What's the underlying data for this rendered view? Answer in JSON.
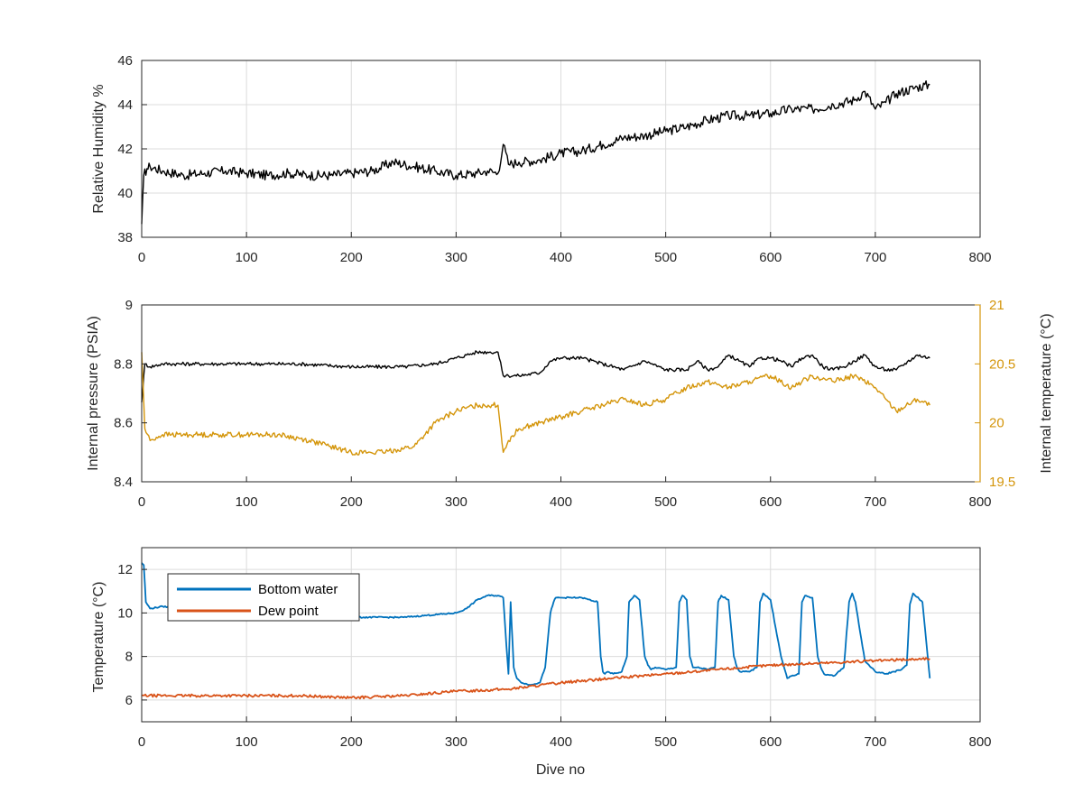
{
  "colors": {
    "background": "#ffffff",
    "axis": "#262626",
    "grid": "#dcdcdc",
    "humidity": "#000000",
    "pressure": "#000000",
    "internal_temperature": "#D4950A",
    "bottom_water": "#0072BD",
    "dew_point": "#D95319"
  },
  "chart_data": [
    {
      "type": "line",
      "xlabel": "",
      "ylabel": "Relative Humidity %",
      "xlim": [
        0,
        800
      ],
      "ylim": [
        38,
        46
      ],
      "xticks": [
        "0",
        "100",
        "200",
        "300",
        "400",
        "500",
        "600",
        "700",
        "800"
      ],
      "yticks": [
        "38",
        "40",
        "42",
        "44",
        "46"
      ],
      "grid": true,
      "series": [
        {
          "color": "#000000",
          "x": [
            0,
            2,
            5,
            8,
            20,
            40,
            60,
            80,
            100,
            120,
            140,
            160,
            180,
            200,
            220,
            240,
            260,
            280,
            300,
            320,
            330,
            340,
            345,
            350,
            360,
            380,
            400,
            420,
            440,
            460,
            480,
            500,
            520,
            540,
            560,
            580,
            600,
            620,
            640,
            660,
            680,
            690,
            700,
            710,
            720,
            740,
            752
          ],
          "y": [
            38.6,
            40.8,
            41.1,
            41.2,
            41.0,
            40.8,
            40.9,
            41.0,
            40.9,
            40.8,
            40.9,
            40.8,
            40.8,
            40.9,
            41.0,
            41.4,
            41.2,
            41.0,
            40.8,
            40.9,
            41.0,
            40.9,
            42.2,
            41.3,
            41.4,
            41.5,
            41.8,
            41.9,
            42.2,
            42.5,
            42.6,
            42.8,
            43.0,
            43.3,
            43.5,
            43.5,
            43.6,
            43.8,
            43.8,
            44.0,
            44.2,
            44.6,
            43.8,
            44.1,
            44.5,
            44.8,
            44.9
          ]
        }
      ]
    },
    {
      "type": "line",
      "xlabel": "",
      "ylabel": "Internal pressure (PSIA)",
      "ylabel_right": "Internal temperature (°C)",
      "xlim": [
        0,
        800
      ],
      "ylim": [
        8.4,
        9
      ],
      "ylim_right": [
        19.5,
        21
      ],
      "xticks": [
        "0",
        "100",
        "200",
        "300",
        "400",
        "500",
        "600",
        "700",
        "800"
      ],
      "yticks": [
        "8.4",
        "8.6",
        "8.8",
        "9"
      ],
      "yticks_right": [
        "19.5",
        "20",
        "20.5",
        "21"
      ],
      "grid": false,
      "series": [
        {
          "axis": "left",
          "color": "#000000",
          "x": [
            0,
            3,
            8,
            20,
            60,
            100,
            150,
            200,
            250,
            280,
            300,
            310,
            320,
            330,
            340,
            345,
            350,
            360,
            380,
            390,
            400,
            420,
            440,
            460,
            480,
            500,
            520,
            530,
            540,
            550,
            560,
            570,
            580,
            590,
            600,
            610,
            620,
            630,
            640,
            650,
            660,
            670,
            680,
            690,
            700,
            710,
            720,
            740,
            752
          ],
          "y": [
            8.67,
            8.8,
            8.79,
            8.8,
            8.8,
            8.8,
            8.8,
            8.79,
            8.79,
            8.8,
            8.82,
            8.83,
            8.84,
            8.84,
            8.84,
            8.76,
            8.76,
            8.76,
            8.77,
            8.81,
            8.82,
            8.82,
            8.8,
            8.78,
            8.81,
            8.78,
            8.78,
            8.81,
            8.78,
            8.79,
            8.83,
            8.81,
            8.79,
            8.82,
            8.82,
            8.81,
            8.79,
            8.82,
            8.83,
            8.79,
            8.78,
            8.79,
            8.81,
            8.83,
            8.79,
            8.78,
            8.78,
            8.83,
            8.82
          ]
        },
        {
          "axis": "right",
          "color": "#D4950A",
          "x": [
            0,
            3,
            8,
            20,
            50,
            80,
            100,
            130,
            160,
            180,
            200,
            230,
            260,
            280,
            300,
            320,
            340,
            345,
            350,
            360,
            380,
            400,
            420,
            440,
            460,
            480,
            500,
            520,
            540,
            560,
            580,
            600,
            620,
            640,
            660,
            680,
            700,
            710,
            720,
            740,
            752
          ],
          "y": [
            20.6,
            19.95,
            19.85,
            19.9,
            19.9,
            19.9,
            19.9,
            19.9,
            19.85,
            19.8,
            19.75,
            19.75,
            19.8,
            20.0,
            20.1,
            20.15,
            20.15,
            19.75,
            19.85,
            19.95,
            20.0,
            20.05,
            20.1,
            20.15,
            20.2,
            20.15,
            20.2,
            20.3,
            20.35,
            20.3,
            20.35,
            20.4,
            20.3,
            20.4,
            20.35,
            20.4,
            20.3,
            20.2,
            20.1,
            20.2,
            20.15
          ]
        }
      ]
    },
    {
      "type": "line",
      "xlabel": "Dive no",
      "ylabel": "Temperature (°C)",
      "xlim": [
        0,
        800
      ],
      "ylim": [
        5,
        13
      ],
      "xticks": [
        "0",
        "100",
        "200",
        "300",
        "400",
        "500",
        "600",
        "700",
        "800"
      ],
      "yticks": [
        "6",
        "8",
        "10",
        "12"
      ],
      "grid": true,
      "legend_position": "top-left",
      "series": [
        {
          "name": "Bottom water",
          "color": "#0072BD",
          "x": [
            0,
            2,
            4,
            8,
            20,
            40,
            60,
            100,
            150,
            200,
            250,
            300,
            310,
            320,
            330,
            340,
            345,
            348,
            350,
            352,
            355,
            358,
            362,
            370,
            380,
            385,
            390,
            393,
            395,
            400,
            420,
            435,
            438,
            440,
            442,
            445,
            450,
            458,
            463,
            465,
            470,
            475,
            480,
            483,
            486,
            490,
            500,
            510,
            513,
            516,
            520,
            523,
            526,
            530,
            540,
            547,
            550,
            553,
            560,
            565,
            568,
            571,
            580,
            587,
            590,
            593,
            600,
            610,
            613,
            616,
            620,
            627,
            630,
            633,
            640,
            645,
            648,
            651,
            660,
            670,
            675,
            678,
            681,
            690,
            700,
            710,
            725,
            730,
            733,
            736,
            745,
            750,
            752
          ],
          "y": [
            12.3,
            12.2,
            10.5,
            10.2,
            10.3,
            10.2,
            10.1,
            10.0,
            9.9,
            9.8,
            9.8,
            10.0,
            10.2,
            10.6,
            10.8,
            10.8,
            10.7,
            8.5,
            7.2,
            10.5,
            7.5,
            7.0,
            6.8,
            6.7,
            6.8,
            7.5,
            10.0,
            10.5,
            10.7,
            10.7,
            10.7,
            10.5,
            8.0,
            7.3,
            7.2,
            7.3,
            7.2,
            7.3,
            8.0,
            10.5,
            10.8,
            10.6,
            8.0,
            7.6,
            7.4,
            7.5,
            7.4,
            7.5,
            10.5,
            10.8,
            10.6,
            8.0,
            7.5,
            7.5,
            7.4,
            7.5,
            10.5,
            10.8,
            10.6,
            8.0,
            7.5,
            7.3,
            7.3,
            7.5,
            10.5,
            10.9,
            10.6,
            8.0,
            7.5,
            7.0,
            7.1,
            7.2,
            10.5,
            10.8,
            10.7,
            8.0,
            7.5,
            7.2,
            7.1,
            7.5,
            10.5,
            10.9,
            10.5,
            7.8,
            7.3,
            7.2,
            7.4,
            7.6,
            10.4,
            10.9,
            10.5,
            8.0,
            7.0
          ]
        },
        {
          "name": "Dew point",
          "color": "#D95319",
          "x": [
            0,
            20,
            50,
            100,
            150,
            200,
            250,
            300,
            350,
            400,
            450,
            500,
            550,
            600,
            650,
            700,
            752
          ],
          "y": [
            6.2,
            6.2,
            6.2,
            6.2,
            6.2,
            6.1,
            6.2,
            6.4,
            6.5,
            6.8,
            7.0,
            7.2,
            7.4,
            7.6,
            7.7,
            7.8,
            7.9
          ]
        }
      ]
    }
  ]
}
